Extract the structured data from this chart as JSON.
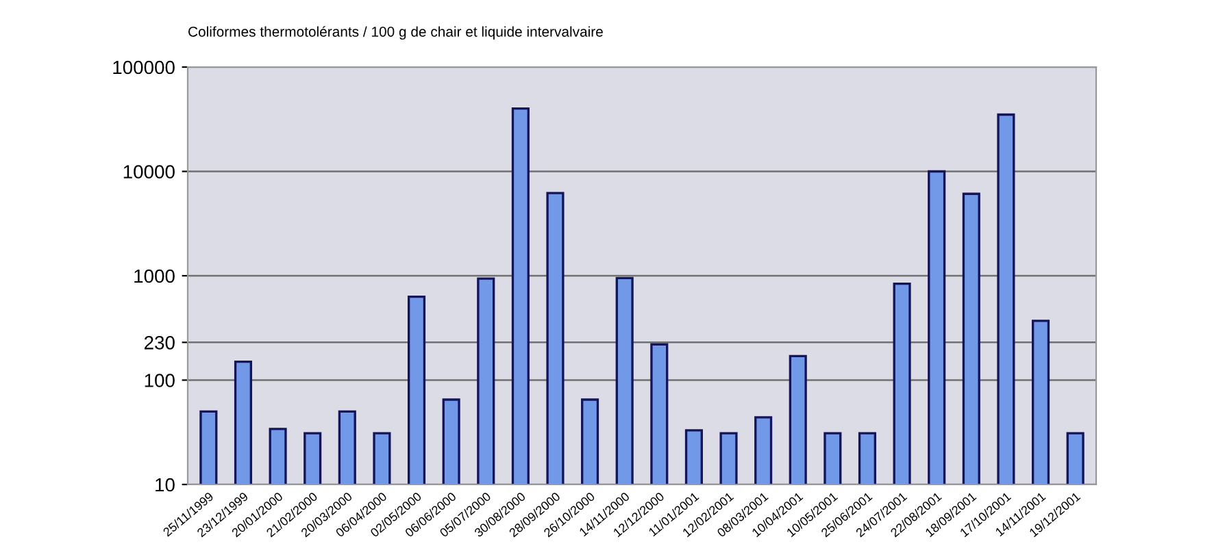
{
  "chart_data": {
    "type": "bar",
    "title": "Coliformes thermotolérants / 100 g de chair et liquide intervalvaire",
    "categories": [
      "25/11/1999",
      "23/12/1999",
      "20/01/2000",
      "21/02/2000",
      "20/03/2000",
      "06/04/2000",
      "02/05/2000",
      "06/06/2000",
      "05/07/2000",
      "30/08/2000",
      "28/09/2000",
      "26/10/2000",
      "14/11/2000",
      "12/12/2000",
      "11/01/2001",
      "12/02/2001",
      "08/03/2001",
      "10/04/2001",
      "10/05/2001",
      "25/06/2001",
      "24/07/2001",
      "22/08/2001",
      "18/09/2001",
      "17/10/2001",
      "14/11/2001",
      "19/12/2001"
    ],
    "values": [
      50,
      150,
      34,
      31,
      50,
      31,
      630,
      65,
      940,
      40000,
      6200,
      65,
      950,
      220,
      33,
      31,
      44,
      170,
      31,
      31,
      840,
      10000,
      6100,
      35000,
      370,
      31
    ],
    "color": "#7199e8",
    "log": "y",
    "ylim": [
      10,
      100000
    ],
    "yticks": [
      10,
      100,
      230,
      1000,
      10000,
      100000
    ],
    "grid": "y"
  }
}
